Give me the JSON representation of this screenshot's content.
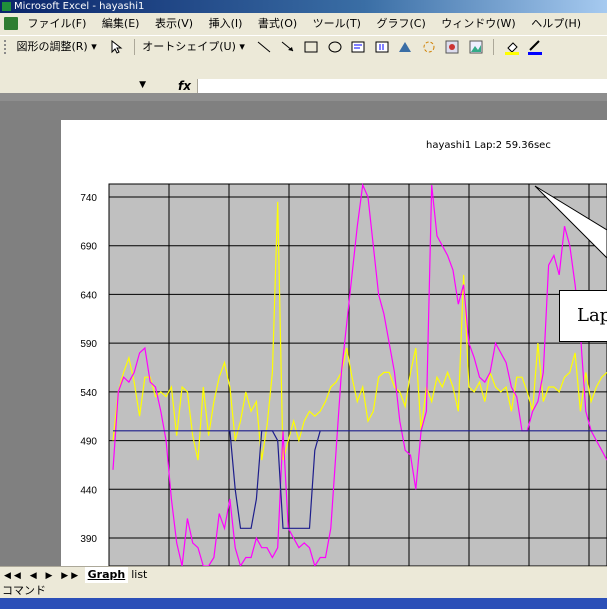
{
  "window": {
    "title": "Microsoft Excel - hayashi1"
  },
  "menubar": {
    "items": [
      "ファイル(F)",
      "編集(E)",
      "表示(V)",
      "挿入(I)",
      "書式(O)",
      "ツール(T)",
      "グラフ(C)",
      "ウィンドウ(W)",
      "ヘルプ(H)"
    ]
  },
  "drawing_toolbar": {
    "draw_menu": "図形の調整(R) ▾",
    "autoshape_menu": "オートシェイプ(U) ▾"
  },
  "formula_bar": {
    "fx": "fx"
  },
  "chart": {
    "subtitle": "hayashi1  Lap:2  59.36sec",
    "callout_text": "Lap"
  },
  "chart_data": {
    "type": "line",
    "ylim": [
      365,
      755
    ],
    "y_ticks": [
      740,
      690,
      640,
      590,
      540,
      490,
      440,
      390
    ],
    "series": [
      {
        "color": "#ffff00",
        "values": [
          490,
          540,
          560,
          575,
          550,
          515,
          555,
          555,
          535,
          540,
          535,
          545,
          495,
          545,
          540,
          495,
          470,
          545,
          495,
          530,
          555,
          570,
          545,
          490,
          510,
          540,
          520,
          530,
          470,
          505,
          560,
          735,
          470,
          490,
          510,
          490,
          510,
          520,
          515,
          520,
          530,
          545,
          550,
          560,
          585,
          555,
          530,
          545,
          510,
          520,
          555,
          560,
          560,
          545,
          540,
          525,
          560,
          585,
          500,
          545,
          530,
          555,
          545,
          560,
          545,
          520,
          660,
          545,
          540,
          550,
          530,
          560,
          545,
          540,
          545,
          520,
          555,
          555,
          540,
          520,
          590,
          530,
          545,
          545,
          540,
          555,
          560,
          580,
          520,
          560,
          530,
          545,
          555,
          560
        ]
      },
      {
        "color": "#ff00ff",
        "values": [
          460,
          540,
          555,
          550,
          560,
          580,
          585,
          550,
          545,
          520,
          490,
          430,
          385,
          360,
          410,
          385,
          380,
          355,
          360,
          370,
          415,
          400,
          430,
          380,
          360,
          370,
          370,
          390,
          380,
          380,
          370,
          380,
          500,
          400,
          390,
          380,
          385,
          380,
          360,
          370,
          370,
          400,
          480,
          560,
          610,
          660,
          710,
          755,
          740,
          690,
          640,
          620,
          590,
          560,
          510,
          480,
          475,
          440,
          500,
          520,
          760,
          700,
          690,
          680,
          665,
          630,
          650,
          590,
          575,
          555,
          550,
          560,
          590,
          580,
          570,
          545,
          535,
          500,
          500,
          520,
          530,
          560,
          670,
          680,
          660,
          710,
          690,
          650,
          600,
          520,
          500,
          490,
          480,
          470
        ]
      },
      {
        "color": "#1e1e8c",
        "values": [
          500,
          500,
          500,
          500,
          500,
          500,
          500,
          500,
          500,
          500,
          500,
          500,
          500,
          500,
          500,
          500,
          500,
          500,
          500,
          500,
          500,
          500,
          500,
          500,
          500,
          500,
          500,
          500,
          500,
          500,
          500,
          500,
          500,
          500,
          500,
          500,
          500,
          500,
          500,
          500,
          500,
          500,
          500,
          500,
          500,
          500,
          500,
          500,
          500,
          500,
          500,
          500,
          500,
          500,
          500,
          500,
          500,
          500,
          500,
          500,
          500,
          500,
          500,
          500,
          500,
          500,
          500,
          500,
          500,
          500,
          500,
          500,
          500,
          500,
          500,
          500,
          500,
          500,
          500,
          500,
          500,
          500,
          500,
          500,
          500,
          500,
          500,
          500,
          500,
          500,
          500,
          500,
          500,
          500
        ]
      },
      {
        "color": "#1e1e8c",
        "values": [
          null,
          null,
          null,
          null,
          null,
          null,
          null,
          null,
          null,
          null,
          null,
          null,
          null,
          null,
          null,
          null,
          null,
          null,
          null,
          null,
          null,
          null,
          500,
          440,
          400,
          400,
          400,
          430,
          500,
          500,
          500,
          490,
          400,
          400,
          400,
          400,
          400,
          400,
          480,
          500,
          null,
          null,
          null,
          null,
          null,
          null,
          null,
          null,
          null,
          null,
          null,
          null,
          null,
          null,
          null,
          null,
          null,
          null,
          null,
          null,
          null,
          null,
          null,
          null,
          null,
          null,
          null,
          null,
          null,
          null,
          null,
          null,
          null,
          null,
          null,
          null,
          null,
          null,
          null,
          null,
          null,
          null,
          null,
          null,
          null,
          null,
          null,
          null,
          null,
          null,
          null,
          null,
          null,
          null
        ]
      }
    ]
  },
  "sheet_tabs": {
    "tabs": [
      "Graph",
      "list"
    ]
  },
  "status": {
    "text": "コマンド"
  }
}
